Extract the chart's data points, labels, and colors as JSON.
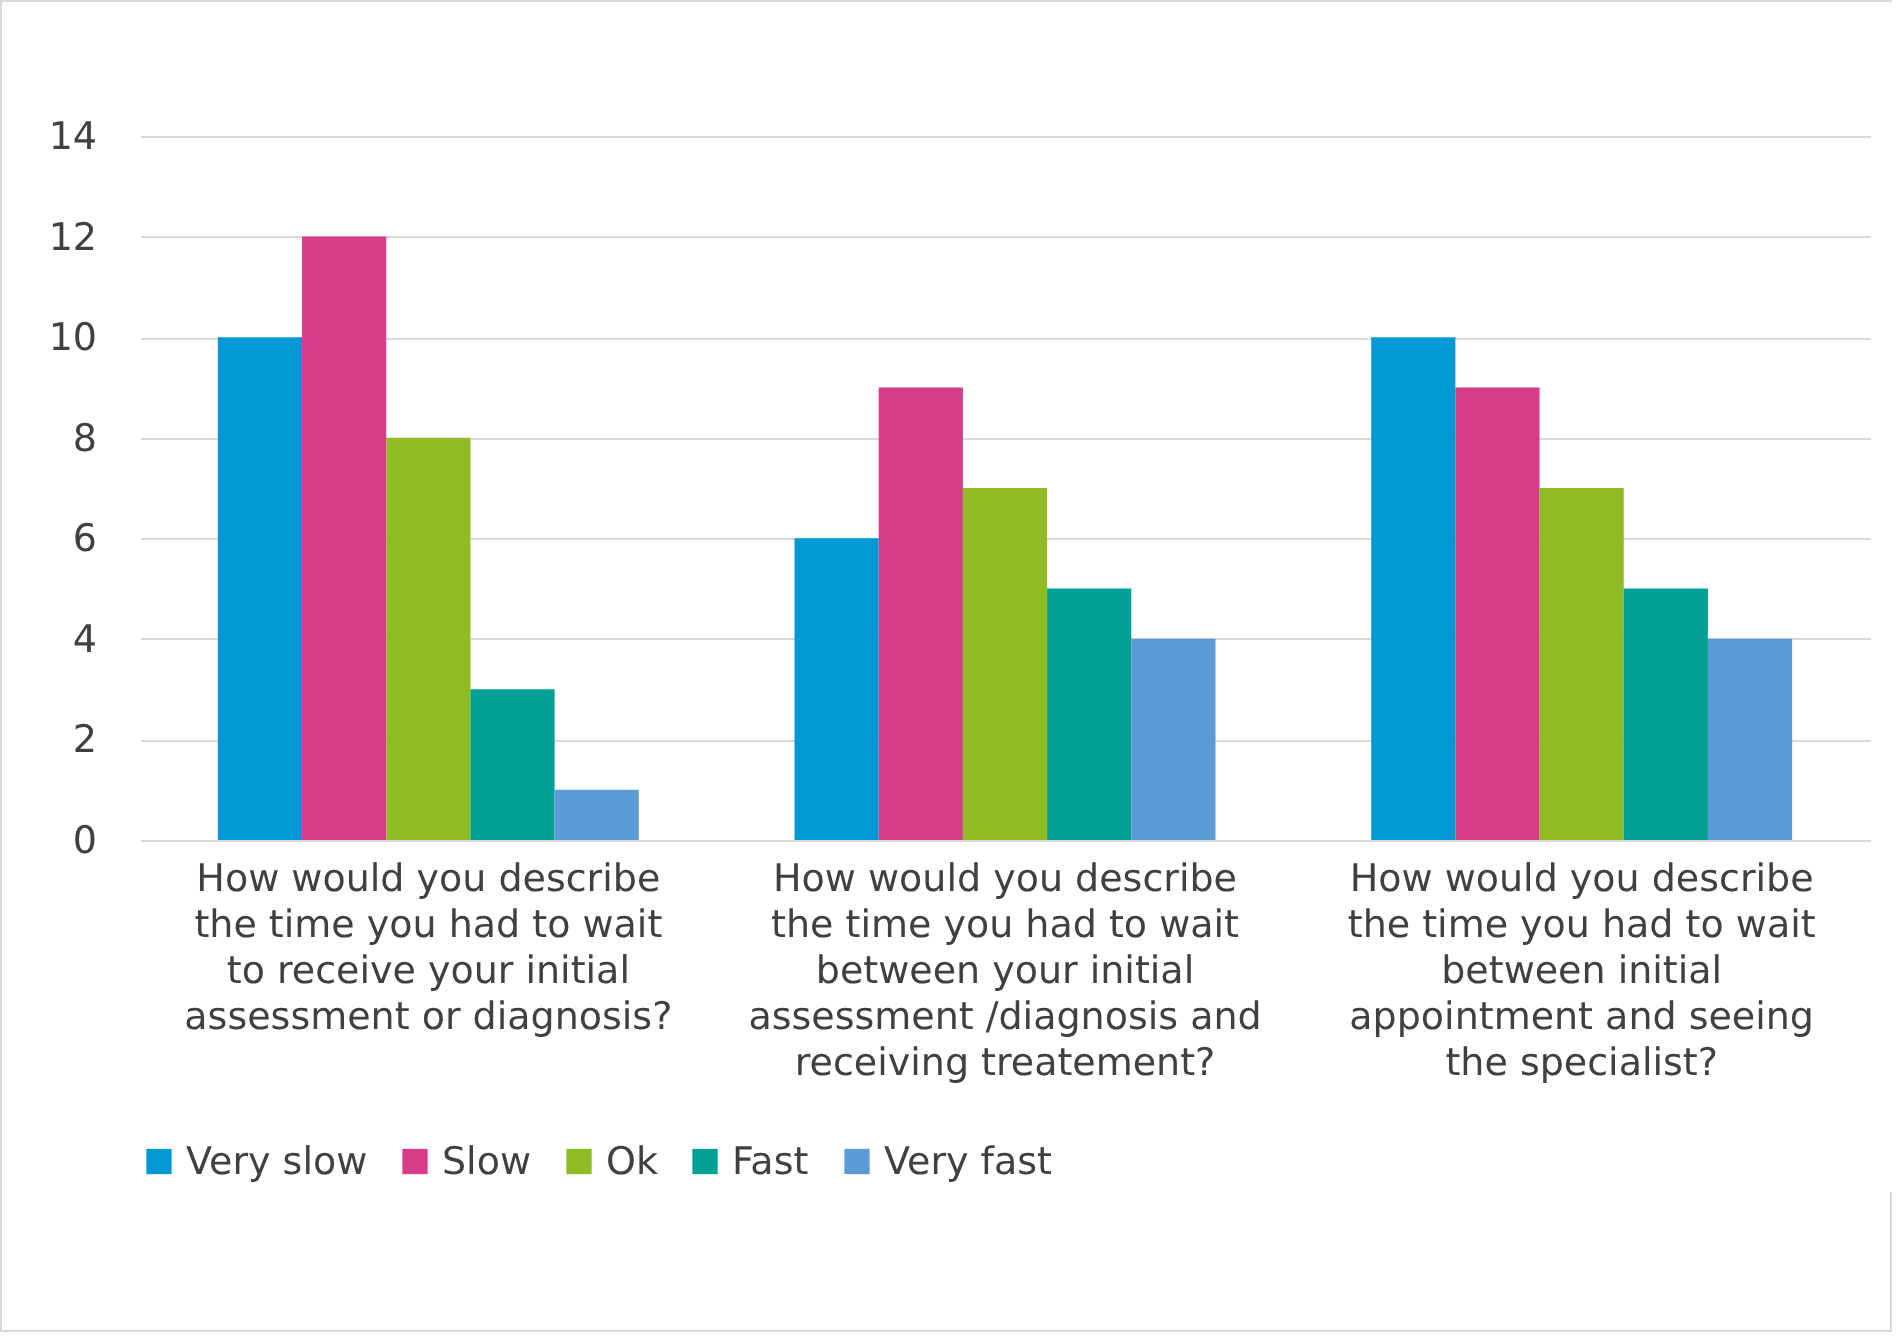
{
  "chart_data": {
    "type": "bar",
    "categories": [
      "How would you describe the time you had to wait to receive your initial assessment or diagnosis?",
      "How would you describe the time you had to wait between your initial assessment /diagnosis and receiving treatement?",
      "How would you describe the time you had to wait between initial appointment and seeing the specialist?"
    ],
    "series": [
      {
        "name": "Very slow",
        "color": "#0099d4",
        "values": [
          10,
          6,
          10
        ]
      },
      {
        "name": "Slow",
        "color": "#d93b8b",
        "values": [
          12,
          9,
          9
        ]
      },
      {
        "name": "Ok",
        "color": "#8fbc24",
        "values": [
          8,
          7,
          7
        ]
      },
      {
        "name": "Fast",
        "color": "#00a096",
        "values": [
          3,
          5,
          5
        ]
      },
      {
        "name": "Very fast",
        "color": "#5b9bd5",
        "values": [
          1,
          4,
          4
        ]
      }
    ],
    "ylim": [
      0,
      14
    ],
    "yticks": [
      0,
      2,
      4,
      6,
      8,
      10,
      12,
      14
    ],
    "grid": "y",
    "legend": "bottom"
  }
}
